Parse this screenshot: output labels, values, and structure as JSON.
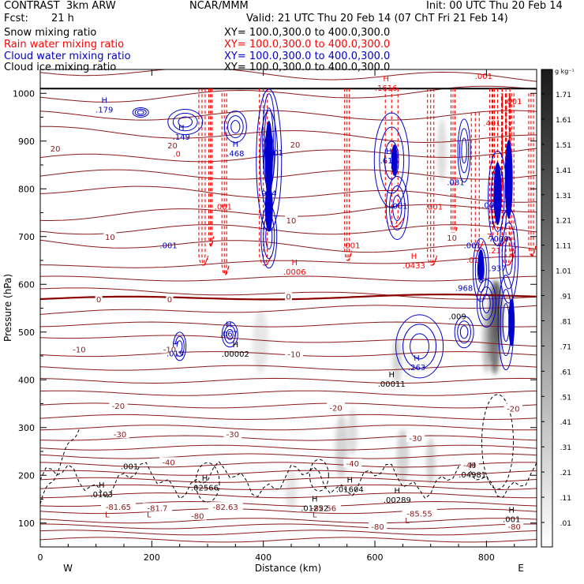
{
  "header": {
    "title": "CONTRAST  3km ARW",
    "forecast_label": "Fcst:",
    "forecast_value": "21 h",
    "center": "NCAR/MMM",
    "init": "Init: 00 UTC Thu 20 Feb 14",
    "valid": "Valid: 21 UTC Thu 20 Feb 14 (07 ChT Fri 21 Feb 14)"
  },
  "fields": [
    {
      "name": "Snow mixing ratio",
      "xy": "XY= 100.0,300.0 to 400.0,300.0",
      "color": "#000000"
    },
    {
      "name": "Rain water mixing ratio",
      "xy": "XY= 100.0,300.0 to 400.0,300.0",
      "color": "#ff0000"
    },
    {
      "name": "Cloud water mixing ratio",
      "xy": "XY= 100.0,300.0 to 400.0,300.0",
      "color": "#0000cc"
    },
    {
      "name": "Cloud ice mixing ratio",
      "xy": "XY= 100.0,300.0 to 400.0,300.0",
      "color": "#000000"
    }
  ],
  "colors": {
    "temperature": "#8b1a1a",
    "freezing_level": "#8b0000",
    "rain": "#ff0000",
    "cloud_water": "#0000cc",
    "cloud_ice": "#000000"
  },
  "chart_data": {
    "type": "cross-section",
    "xlabel": "Distance (km)",
    "ylabel": "Pressure (hPa)",
    "xlim": [
      0,
      890
    ],
    "ylim": [
      1050,
      50
    ],
    "x_ticks": [
      "0",
      "200",
      "400",
      "600",
      "800"
    ],
    "y_ticks": [
      "100",
      "200",
      "300",
      "400",
      "500",
      "600",
      "700",
      "800",
      "900",
      "1000"
    ],
    "endpoints": {
      "left": "W",
      "right": "E"
    },
    "colorbar": {
      "unit": "g kg⁻¹",
      "ticks": [
        "1.71",
        "1.61",
        "1.51",
        "1.41",
        "1.31",
        "1.21",
        "1.11",
        "1.01",
        ".91",
        ".81",
        ".71",
        ".61",
        ".51",
        ".41",
        ".31",
        ".21",
        ".11",
        ".01"
      ]
    },
    "temperature_labels": [
      {
        "text": "-80",
        "x": 282,
        "p": 115
      },
      {
        "text": "-80",
        "x": 605,
        "p": 93
      },
      {
        "text": "-80",
        "x": 850,
        "p": 93
      },
      {
        "text": "-81.65",
        "x": 140,
        "p": 134
      },
      {
        "text": "-81.7",
        "x": 210,
        "p": 132
      },
      {
        "text": "-82.63",
        "x": 332,
        "p": 134
      },
      {
        "text": "-82.56",
        "x": 508,
        "p": 132
      },
      {
        "text": "-85.55",
        "x": 680,
        "p": 120
      },
      {
        "text": "-40",
        "x": 230,
        "p": 228
      },
      {
        "text": "-40",
        "x": 560,
        "p": 225
      },
      {
        "text": "-40",
        "x": 770,
        "p": 222
      },
      {
        "text": "-30",
        "x": 143,
        "p": 286
      },
      {
        "text": "-30",
        "x": 345,
        "p": 286
      },
      {
        "text": "-30",
        "x": 673,
        "p": 278
      },
      {
        "text": "-20",
        "x": 140,
        "p": 346
      },
      {
        "text": "-20",
        "x": 530,
        "p": 342
      },
      {
        "text": "-20",
        "x": 848,
        "p": 340
      },
      {
        "text": "-10",
        "x": 70,
        "p": 464
      },
      {
        "text": "-10",
        "x": 232,
        "p": 464
      },
      {
        "text": "-10",
        "x": 455,
        "p": 454
      },
      {
        "text": "0",
        "x": 105,
        "p": 569
      },
      {
        "text": "0",
        "x": 232,
        "p": 569
      },
      {
        "text": "0",
        "x": 445,
        "p": 575
      },
      {
        "text": "10",
        "x": 125,
        "p": 700
      },
      {
        "text": "10",
        "x": 450,
        "p": 734
      },
      {
        "text": "10",
        "x": 738,
        "p": 698
      },
      {
        "text": "20",
        "x": 27,
        "p": 885
      },
      {
        "text": "20",
        "x": 237,
        "p": 891
      },
      {
        "text": "20",
        "x": 457,
        "p": 893
      }
    ],
    "extrema_labels": [
      {
        "mark": "L",
        "x": 120,
        "p": 112,
        "color": "#8b1a1a"
      },
      {
        "mark": "L",
        "x": 195,
        "p": 112,
        "color": "#8b1a1a"
      },
      {
        "mark": "L",
        "x": 492,
        "p": 112,
        "color": "#8b1a1a"
      },
      {
        "mark": "L",
        "x": 658,
        "p": 100,
        "color": "#8b1a1a"
      },
      {
        "mark": "H",
        "x": 110,
        "p": 174,
        "text": ".0103",
        "color": "#000000"
      },
      {
        "mark": "H",
        "x": 295,
        "p": 188,
        "text": ".02566",
        "color": "#000000"
      },
      {
        "mark": "H",
        "x": 492,
        "p": 145,
        "text": ".01252",
        "color": "#000000"
      },
      {
        "mark": "H",
        "x": 555,
        "p": 185,
        "text": ".01604",
        "color": "#000000"
      },
      {
        "mark": "H",
        "x": 640,
        "p": 162,
        "text": ".00289",
        "color": "#000000"
      },
      {
        "mark": "H",
        "x": 775,
        "p": 215,
        "text": ".04981",
        "color": "#000000"
      },
      {
        "mark": "H",
        "x": 845,
        "p": 122,
        "text": ".001",
        "color": "#000000"
      },
      {
        "mark": "",
        "x": 160,
        "p": 213,
        "text": ".001",
        "color": "#000000"
      },
      {
        "mark": "H",
        "x": 630,
        "p": 405,
        "text": ".00011",
        "color": "#000000"
      },
      {
        "mark": "H",
        "x": 350,
        "p": 468,
        "text": ".00002",
        "color": "#000000"
      },
      {
        "mark": "H",
        "x": 242,
        "p": 469,
        "text": ".019",
        "color": "#0000cc"
      },
      {
        "mark": "H",
        "x": 338,
        "p": 510,
        "text": ".067",
        "color": "#0000cc"
      },
      {
        "mark": "H",
        "x": 675,
        "p": 440,
        "text": ".263",
        "color": "#0000cc"
      },
      {
        "mark": "",
        "x": 748,
        "p": 527,
        "text": ".009",
        "color": "#000000"
      },
      {
        "mark": "",
        "x": 760,
        "p": 586,
        "text": ".968",
        "color": "#0000cc"
      },
      {
        "mark": "H",
        "x": 456,
        "p": 640,
        "text": ".0006",
        "color": "#ff0000"
      },
      {
        "mark": "H",
        "x": 670,
        "p": 653,
        "text": ".0433",
        "color": "#ff0000"
      },
      {
        "mark": "",
        "x": 775,
        "p": 645,
        "text": ".01",
        "color": "#ff0000"
      },
      {
        "mark": "",
        "x": 820,
        "p": 628,
        "text": ".937",
        "color": "#0000cc"
      },
      {
        "mark": "",
        "x": 815,
        "p": 665,
        "text": ".21",
        "color": "#ff0000"
      },
      {
        "mark": "",
        "x": 805,
        "p": 695,
        "text": "7",
        "color": "#ff0000"
      },
      {
        "mark": "",
        "x": 822,
        "p": 690,
        "text": "7000",
        "color": "#0000cc"
      },
      {
        "mark": "",
        "x": 230,
        "p": 676,
        "text": ".001",
        "color": "#0000cc"
      },
      {
        "mark": "",
        "x": 328,
        "p": 757,
        "text": ".001",
        "color": "#ff0000"
      },
      {
        "mark": "",
        "x": 410,
        "p": 680,
        "text": "",
        "color": "#0000cc"
      },
      {
        "mark": "",
        "x": 408,
        "p": 785,
        "text": ".914",
        "color": "#0000cc"
      },
      {
        "mark": "",
        "x": 420,
        "p": 870,
        "text": ".001",
        "color": "#0000cc"
      },
      {
        "mark": "",
        "x": 558,
        "p": 676,
        "text": ".001",
        "color": "#ff0000"
      },
      {
        "mark": "",
        "x": 706,
        "p": 757,
        "text": ".001",
        "color": "#ff0000"
      },
      {
        "mark": "",
        "x": 775,
        "p": 676,
        "text": ".001",
        "color": "#0000cc"
      },
      {
        "mark": "",
        "x": 643,
        "p": 758,
        "text": ".001",
        "color": "#0000cc"
      },
      {
        "mark": "",
        "x": 745,
        "p": 808,
        "text": ".081",
        "color": "#0000cc"
      },
      {
        "mark": "",
        "x": 807,
        "p": 760,
        "text": ".001",
        "color": "#0000cc"
      },
      {
        "mark": "",
        "x": 245,
        "p": 867,
        "text": ".0",
        "color": "#ff0000"
      },
      {
        "mark": "H",
        "x": 350,
        "p": 888,
        "text": ".468",
        "color": "#0000cc"
      },
      {
        "mark": "H",
        "x": 253,
        "p": 923,
        "text": ".149",
        "color": "#0000cc"
      },
      {
        "mark": "H",
        "x": 625,
        "p": 873,
        "text": ".619",
        "color": "#0000cc"
      },
      {
        "mark": "H",
        "x": 115,
        "p": 980,
        "text": ".179",
        "color": "#0000cc"
      },
      {
        "mark": "H",
        "x": 620,
        "p": 1025,
        "text": ".1616",
        "color": "#ff0000"
      },
      {
        "mark": "",
        "x": 810,
        "p": 932,
        "text": ".401",
        "color": "#ff0000"
      },
      {
        "mark": "",
        "x": 848,
        "p": 977,
        "text": ".001",
        "color": "#ff0000"
      },
      {
        "mark": "",
        "x": 795,
        "p": 1030,
        "text": ".001",
        "color": "#ff0000"
      }
    ]
  }
}
